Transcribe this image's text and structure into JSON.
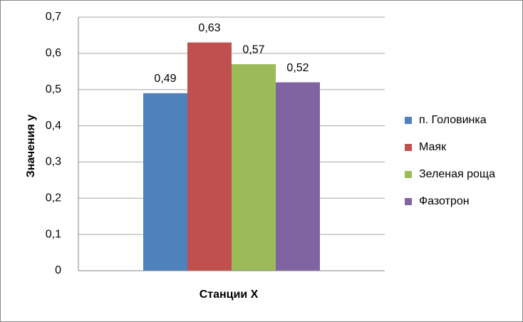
{
  "chart_data": {
    "type": "bar",
    "x_label": "Станции X",
    "y_label": "Значения y",
    "categories": [
      null
    ],
    "series": [
      {
        "name": "п. Головинка",
        "color": "#4f81bd",
        "values": [
          0.49
        ],
        "value_labels": [
          "0,49"
        ]
      },
      {
        "name": "Маяк",
        "color": "#c0504d",
        "values": [
          0.63
        ],
        "value_labels": [
          "0,63"
        ]
      },
      {
        "name": "Зеленая роща",
        "color": "#9bbb59",
        "values": [
          0.57
        ],
        "value_labels": [
          "0,57"
        ]
      },
      {
        "name": "Фазотрон",
        "color": "#8064a2",
        "values": [
          0.52
        ],
        "value_labels": [
          "0,52"
        ]
      }
    ],
    "ylim": [
      0,
      0.7
    ],
    "yticks": [
      0,
      {
        "value": 0.1,
        "label": "0,1"
      },
      {
        "value": 0.2,
        "label": "0,2"
      },
      {
        "value": 0.3,
        "label": "0,3"
      },
      {
        "value": 0.4,
        "label": "0,4"
      },
      {
        "value": 0.5,
        "label": "0,5"
      },
      {
        "value": 0.6,
        "label": "0,6"
      },
      {
        "value": 0.7,
        "label": "0,7"
      }
    ],
    "grid": true,
    "legend": "right"
  }
}
